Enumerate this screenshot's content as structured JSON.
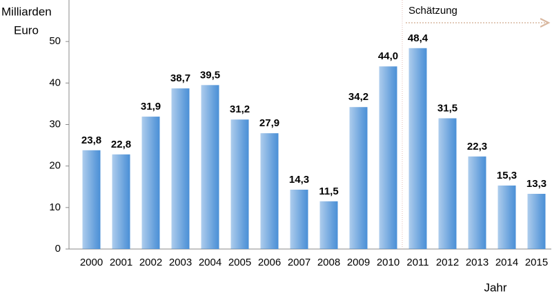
{
  "chart_data": {
    "type": "bar",
    "y_label": [
      "Milliarden",
      "Euro"
    ],
    "x_label": "Jahr",
    "annotation": "Schätzung",
    "categories": [
      "2000",
      "2001",
      "2002",
      "2003",
      "2004",
      "2005",
      "2006",
      "2007",
      "2008",
      "2009",
      "2010",
      "2011",
      "2012",
      "2013",
      "2014",
      "2015"
    ],
    "values": [
      23.8,
      22.8,
      31.9,
      38.7,
      39.5,
      31.2,
      27.9,
      14.3,
      11.5,
      34.2,
      44.0,
      48.4,
      31.5,
      22.3,
      15.3,
      13.3
    ],
    "value_labels": [
      "23,8",
      "22,8",
      "31,9",
      "38,7",
      "39,5",
      "31,2",
      "27,9",
      "14,3",
      "11,5",
      "34,2",
      "44,0",
      "48,4",
      "31,5",
      "22,3",
      "15,3",
      "13,3"
    ],
    "color": "#4a8fd6",
    "ylim": [
      0,
      60
    ],
    "yticks": [
      0,
      10,
      20,
      30,
      40,
      50
    ],
    "grid": false
  }
}
